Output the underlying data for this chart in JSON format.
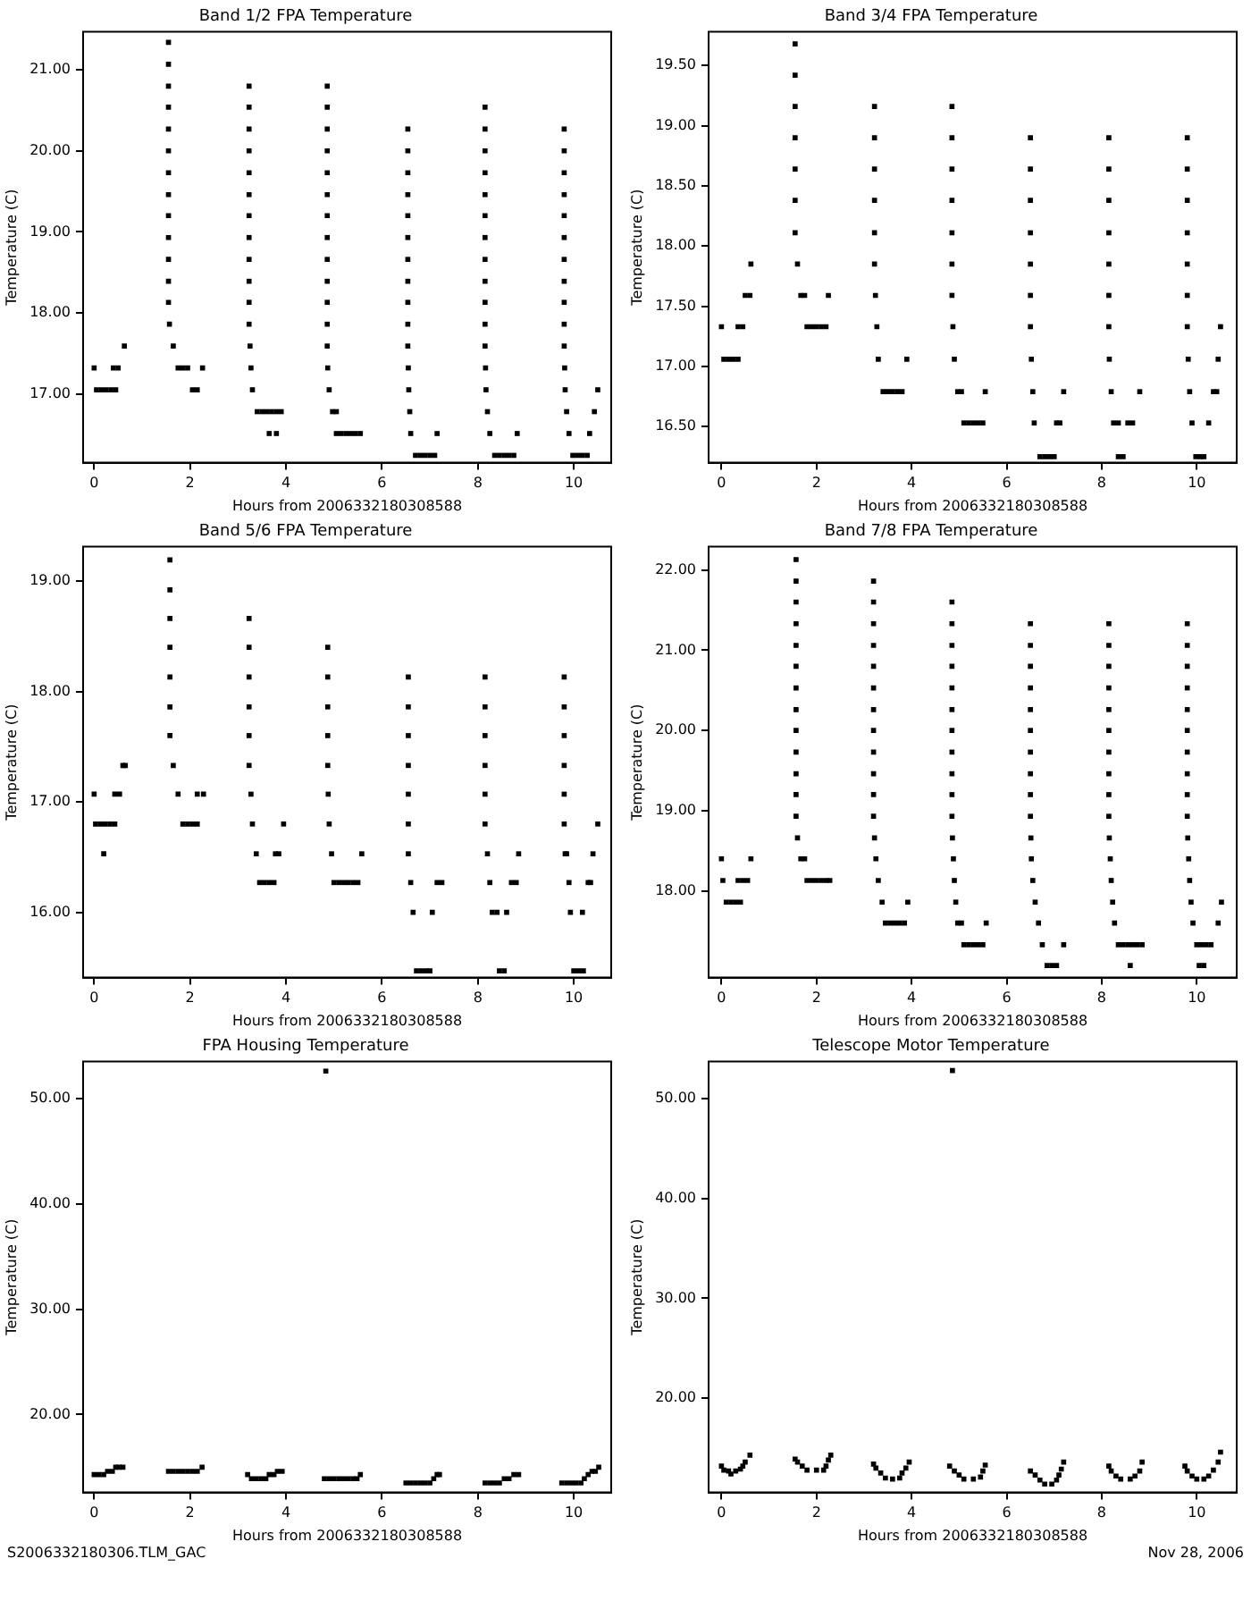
{
  "chart_data": [
    {
      "type": "scatter",
      "title": "Band 1/2 FPA Temperature",
      "xlabel": "Hours from 2006332180308588",
      "ylabel": "Temperature (C)",
      "color": "#000000",
      "marker": "square",
      "grid": false,
      "x": [
        0,
        0.05,
        0.15,
        0.25,
        0.35,
        0.45,
        0.4,
        0.5,
        0.63,
        1.55,
        1.55,
        1.55,
        1.55,
        1.55,
        1.55,
        1.55,
        1.55,
        1.55,
        1.55,
        1.55,
        1.55,
        1.55,
        1.57,
        1.65,
        1.75,
        1.85,
        1.95,
        2.05,
        2.15,
        2.26,
        3.23,
        3.23,
        3.23,
        3.23,
        3.23,
        3.23,
        3.23,
        3.23,
        3.23,
        3.23,
        3.23,
        3.23,
        3.25,
        3.27,
        3.3,
        3.4,
        3.5,
        3.6,
        3.7,
        3.8,
        3.9,
        3.65,
        3.8,
        4.86,
        4.86,
        4.86,
        4.86,
        4.86,
        4.86,
        4.86,
        4.86,
        4.86,
        4.86,
        4.86,
        4.86,
        4.86,
        4.87,
        4.9,
        4.97,
        5.05,
        5.05,
        5.15,
        5.25,
        5.35,
        5.45,
        5.55,
        6.54,
        6.54,
        6.54,
        6.54,
        6.54,
        6.54,
        6.54,
        6.54,
        6.54,
        6.54,
        6.54,
        6.55,
        6.56,
        6.58,
        6.6,
        6.7,
        6.8,
        6.9,
        7.0,
        7.1,
        7.15,
        8.15,
        8.15,
        8.15,
        8.15,
        8.15,
        8.15,
        8.15,
        8.15,
        8.15,
        8.15,
        8.15,
        8.15,
        8.16,
        8.17,
        8.2,
        8.25,
        8.35,
        8.45,
        8.55,
        8.65,
        8.75,
        8.82,
        9.8,
        9.8,
        9.8,
        9.8,
        9.8,
        9.8,
        9.8,
        9.8,
        9.8,
        9.8,
        9.8,
        9.81,
        9.82,
        9.85,
        9.9,
        9.98,
        10.08,
        10.18,
        10.28,
        10.33,
        10.43,
        10.5
      ],
      "values": [
        17.32,
        17.05,
        17.05,
        17.05,
        17.05,
        17.05,
        17.32,
        17.32,
        17.59,
        21.34,
        21.07,
        20.8,
        20.54,
        20.27,
        20.0,
        19.73,
        19.46,
        19.2,
        18.93,
        18.66,
        18.39,
        18.13,
        17.86,
        17.59,
        17.32,
        17.32,
        17.32,
        17.05,
        17.05,
        17.32,
        20.8,
        20.54,
        20.27,
        20.0,
        19.73,
        19.46,
        19.2,
        18.93,
        18.66,
        18.39,
        18.13,
        17.86,
        17.59,
        17.32,
        17.05,
        16.78,
        16.78,
        16.78,
        16.78,
        16.78,
        16.78,
        16.51,
        16.51,
        20.8,
        20.54,
        20.27,
        20.0,
        19.73,
        19.46,
        19.2,
        18.93,
        18.66,
        18.39,
        18.13,
        17.86,
        17.59,
        17.32,
        17.05,
        16.78,
        16.78,
        16.51,
        16.51,
        16.51,
        16.51,
        16.51,
        16.51,
        20.27,
        20.0,
        19.73,
        19.46,
        19.2,
        18.93,
        18.66,
        18.39,
        18.13,
        17.86,
        17.59,
        17.32,
        17.05,
        16.78,
        16.51,
        16.24,
        16.24,
        16.24,
        16.24,
        16.24,
        16.51,
        20.54,
        20.27,
        20.0,
        19.73,
        19.46,
        19.2,
        18.93,
        18.66,
        18.39,
        18.13,
        17.86,
        17.59,
        17.32,
        17.05,
        16.78,
        16.51,
        16.24,
        16.24,
        16.24,
        16.24,
        16.24,
        16.51,
        20.27,
        20.0,
        19.73,
        19.46,
        19.2,
        18.93,
        18.66,
        18.39,
        18.13,
        17.86,
        17.59,
        17.32,
        17.05,
        16.78,
        16.51,
        16.24,
        16.24,
        16.24,
        16.24,
        16.51,
        16.78,
        17.05
      ],
      "xlim": [
        -0.23,
        10.78
      ],
      "xticks": [
        0,
        2,
        4,
        6,
        8,
        10
      ],
      "ylim": [
        16.15,
        21.47
      ],
      "yticks": [
        {
          "value": 17,
          "label": "17.00"
        },
        {
          "value": 18,
          "label": "18.00"
        },
        {
          "value": 19,
          "label": "19.00"
        },
        {
          "value": 20,
          "label": "20.00"
        },
        {
          "value": 21,
          "label": "21.00"
        }
      ]
    },
    {
      "type": "scatter",
      "title": "Band 3/4 FPA Temperature",
      "xlabel": "Hours from 2006332180308588",
      "ylabel": "Temperature (C)",
      "color": "#000000",
      "marker": "square",
      "grid": false,
      "x": [
        0,
        0.05,
        0.15,
        0.25,
        0.35,
        0.35,
        0.45,
        0.5,
        0.6,
        0.62,
        1.55,
        1.55,
        1.55,
        1.55,
        1.55,
        1.55,
        1.55,
        1.6,
        1.67,
        1.75,
        1.8,
        1.9,
        2.0,
        2.1,
        2.2,
        2.25,
        3.22,
        3.22,
        3.22,
        3.22,
        3.22,
        3.22,
        3.24,
        3.27,
        3.3,
        3.4,
        3.5,
        3.6,
        3.7,
        3.8,
        3.9,
        4.85,
        4.85,
        4.85,
        4.85,
        4.85,
        4.85,
        4.85,
        4.87,
        4.9,
        4.97,
        5.05,
        5.1,
        5.2,
        5.3,
        5.4,
        5.5,
        5.55,
        6.5,
        6.5,
        6.5,
        6.5,
        6.5,
        6.5,
        6.5,
        6.52,
        6.55,
        6.58,
        6.7,
        6.8,
        6.9,
        7.0,
        7.05,
        7.12,
        7.2,
        8.15,
        8.15,
        8.15,
        8.15,
        8.15,
        8.15,
        8.15,
        8.16,
        8.2,
        8.25,
        8.35,
        8.35,
        8.45,
        8.55,
        8.65,
        8.8,
        9.8,
        9.8,
        9.8,
        9.8,
        9.8,
        9.8,
        9.8,
        9.82,
        9.85,
        9.9,
        9.98,
        10.08,
        10.15,
        10.25,
        10.35,
        10.42,
        10.45,
        10.5
      ],
      "values": [
        17.33,
        17.06,
        17.06,
        17.06,
        17.06,
        17.33,
        17.33,
        17.59,
        17.59,
        17.85,
        19.68,
        19.42,
        19.16,
        18.9,
        18.64,
        18.38,
        18.11,
        17.85,
        17.59,
        17.59,
        17.33,
        17.33,
        17.33,
        17.33,
        17.33,
        17.59,
        19.16,
        18.9,
        18.64,
        18.38,
        18.11,
        17.85,
        17.59,
        17.33,
        17.06,
        16.79,
        16.79,
        16.79,
        16.79,
        16.79,
        17.06,
        19.16,
        18.9,
        18.64,
        18.38,
        18.11,
        17.85,
        17.59,
        17.33,
        17.06,
        16.79,
        16.79,
        16.53,
        16.53,
        16.53,
        16.53,
        16.53,
        16.79,
        18.9,
        18.64,
        18.38,
        18.11,
        17.85,
        17.59,
        17.33,
        17.06,
        16.79,
        16.53,
        16.25,
        16.25,
        16.25,
        16.25,
        16.53,
        16.53,
        16.79,
        18.9,
        18.64,
        18.38,
        18.11,
        17.85,
        17.59,
        17.33,
        17.06,
        16.79,
        16.53,
        16.53,
        16.25,
        16.25,
        16.53,
        16.53,
        16.79,
        18.9,
        18.64,
        18.38,
        18.11,
        17.85,
        17.59,
        17.33,
        17.06,
        16.79,
        16.53,
        16.25,
        16.25,
        16.25,
        16.53,
        16.79,
        16.79,
        17.06,
        17.33
      ],
      "xlim": [
        -0.27,
        10.84
      ],
      "xticks": [
        0,
        2,
        4,
        6,
        8,
        10
      ],
      "ylim": [
        16.2,
        19.78
      ],
      "yticks": [
        {
          "value": 16.5,
          "label": "16.50"
        },
        {
          "value": 17,
          "label": "17.00"
        },
        {
          "value": 17.5,
          "label": "17.50"
        },
        {
          "value": 18,
          "label": "18.00"
        },
        {
          "value": 18.5,
          "label": "18.50"
        },
        {
          "value": 19,
          "label": "19.00"
        },
        {
          "value": 19.5,
          "label": "19.50"
        }
      ]
    },
    {
      "type": "scatter",
      "title": "Band 5/6 FPA Temperature",
      "xlabel": "Hours from 2006332180308588",
      "ylabel": "Temperature (C)",
      "color": "#000000",
      "marker": "square",
      "grid": false,
      "x": [
        0,
        0.03,
        0.13,
        0.23,
        0.33,
        0.43,
        0.2,
        0.43,
        0.53,
        0.6,
        0.65,
        1.58,
        1.58,
        1.58,
        1.58,
        1.58,
        1.58,
        1.58,
        1.65,
        1.75,
        1.85,
        1.95,
        2.05,
        2.15,
        2.15,
        2.28,
        3.23,
        3.23,
        3.23,
        3.23,
        3.23,
        3.23,
        3.27,
        3.3,
        3.38,
        3.45,
        3.55,
        3.65,
        3.75,
        3.78,
        3.85,
        3.95,
        4.87,
        4.87,
        4.87,
        4.87,
        4.87,
        4.88,
        4.9,
        4.95,
        5.0,
        5.1,
        5.2,
        5.3,
        5.4,
        5.5,
        5.58,
        6.55,
        6.55,
        6.55,
        6.55,
        6.55,
        6.55,
        6.55,
        6.6,
        6.65,
        6.72,
        6.82,
        6.92,
        7.0,
        7.05,
        7.15,
        7.25,
        8.15,
        8.15,
        8.15,
        8.15,
        8.15,
        8.15,
        8.2,
        8.25,
        8.3,
        8.4,
        8.45,
        8.55,
        8.6,
        8.7,
        8.8,
        8.85,
        9.8,
        9.8,
        9.8,
        9.8,
        9.8,
        9.8,
        9.82,
        9.85,
        9.9,
        9.93,
        10.0,
        10.1,
        10.2,
        10.18,
        10.3,
        10.35,
        10.4,
        10.5
      ],
      "values": [
        17.07,
        16.8,
        16.8,
        16.8,
        16.8,
        16.8,
        16.53,
        17.07,
        17.07,
        17.33,
        17.33,
        19.19,
        18.92,
        18.66,
        18.4,
        18.13,
        17.86,
        17.6,
        17.33,
        17.07,
        16.8,
        16.8,
        16.8,
        16.8,
        17.07,
        17.07,
        18.66,
        18.4,
        18.13,
        17.86,
        17.6,
        17.33,
        17.07,
        16.8,
        16.53,
        16.27,
        16.27,
        16.27,
        16.27,
        16.53,
        16.53,
        16.8,
        18.4,
        18.13,
        17.86,
        17.6,
        17.33,
        17.07,
        16.8,
        16.53,
        16.27,
        16.27,
        16.27,
        16.27,
        16.27,
        16.27,
        16.53,
        18.13,
        17.86,
        17.6,
        17.33,
        17.07,
        16.8,
        16.53,
        16.27,
        16.0,
        15.47,
        15.47,
        15.47,
        15.47,
        16.0,
        16.27,
        16.27,
        18.13,
        17.86,
        17.6,
        17.33,
        17.07,
        16.8,
        16.53,
        16.27,
        16.0,
        16.0,
        15.47,
        15.47,
        16.0,
        16.27,
        16.27,
        16.53,
        18.13,
        17.86,
        17.6,
        17.33,
        17.07,
        16.8,
        16.53,
        16.53,
        16.27,
        16.0,
        15.47,
        15.47,
        15.47,
        16.0,
        16.27,
        16.27,
        16.53,
        16.8
      ],
      "xlim": [
        -0.23,
        10.78
      ],
      "xticks": [
        0,
        2,
        4,
        6,
        8,
        10
      ],
      "ylim": [
        15.41,
        19.31
      ],
      "yticks": [
        {
          "value": 16,
          "label": "16.00"
        },
        {
          "value": 17,
          "label": "17.00"
        },
        {
          "value": 18,
          "label": "18.00"
        },
        {
          "value": 19,
          "label": "19.00"
        }
      ]
    },
    {
      "type": "scatter",
      "title": "Band 7/8 FPA Temperature",
      "xlabel": "Hours from 2006332180308588",
      "ylabel": "Temperature (C)",
      "color": "#000000",
      "marker": "square",
      "grid": false,
      "x": [
        0,
        0.03,
        0.1,
        0.2,
        0.3,
        0.4,
        0.35,
        0.45,
        0.55,
        0.62,
        1.57,
        1.57,
        1.57,
        1.57,
        1.57,
        1.57,
        1.57,
        1.57,
        1.57,
        1.57,
        1.57,
        1.57,
        1.57,
        1.6,
        1.67,
        1.75,
        1.8,
        1.9,
        2.0,
        2.1,
        2.2,
        2.28,
        3.2,
        3.2,
        3.2,
        3.2,
        3.2,
        3.2,
        3.2,
        3.2,
        3.2,
        3.2,
        3.2,
        3.2,
        3.22,
        3.25,
        3.3,
        3.38,
        3.45,
        3.55,
        3.65,
        3.75,
        3.85,
        3.92,
        4.85,
        4.85,
        4.85,
        4.85,
        4.85,
        4.85,
        4.85,
        4.85,
        4.85,
        4.85,
        4.85,
        4.86,
        4.88,
        4.9,
        4.93,
        4.97,
        5.05,
        5.1,
        5.2,
        5.3,
        5.4,
        5.5,
        5.57,
        6.5,
        6.5,
        6.5,
        6.5,
        6.5,
        6.5,
        6.5,
        6.5,
        6.5,
        6.5,
        6.51,
        6.52,
        6.55,
        6.6,
        6.67,
        6.75,
        6.85,
        6.95,
        7.05,
        7.2,
        8.15,
        8.15,
        8.15,
        8.15,
        8.15,
        8.15,
        8.15,
        8.15,
        8.15,
        8.15,
        8.16,
        8.18,
        8.2,
        8.23,
        8.27,
        8.35,
        8.45,
        8.55,
        8.6,
        8.65,
        8.75,
        8.85,
        9.8,
        9.8,
        9.8,
        9.8,
        9.8,
        9.8,
        9.8,
        9.8,
        9.8,
        9.8,
        9.81,
        9.83,
        9.85,
        9.88,
        9.92,
        10.0,
        10.1,
        10.05,
        10.15,
        10.2,
        10.3,
        10.45,
        10.52
      ],
      "values": [
        18.4,
        18.13,
        17.86,
        17.86,
        17.86,
        17.86,
        18.13,
        18.13,
        18.13,
        18.4,
        22.13,
        21.86,
        21.6,
        21.33,
        21.06,
        20.8,
        20.53,
        20.26,
        20.0,
        19.73,
        19.46,
        19.2,
        18.93,
        18.66,
        18.4,
        18.4,
        18.13,
        18.13,
        18.13,
        18.13,
        18.13,
        18.13,
        21.86,
        21.6,
        21.33,
        21.06,
        20.8,
        20.53,
        20.26,
        20.0,
        19.73,
        19.46,
        19.2,
        18.93,
        18.66,
        18.4,
        18.13,
        17.86,
        17.6,
        17.6,
        17.6,
        17.6,
        17.6,
        17.86,
        21.6,
        21.33,
        21.06,
        20.8,
        20.53,
        20.26,
        20.0,
        19.73,
        19.46,
        19.2,
        18.93,
        18.66,
        18.4,
        18.13,
        17.86,
        17.6,
        17.6,
        17.33,
        17.33,
        17.33,
        17.33,
        17.33,
        17.6,
        21.33,
        21.06,
        20.8,
        20.53,
        20.26,
        20.0,
        19.73,
        19.46,
        19.2,
        18.93,
        18.66,
        18.4,
        18.13,
        17.86,
        17.6,
        17.33,
        17.07,
        17.07,
        17.07,
        17.33,
        21.33,
        21.06,
        20.8,
        20.53,
        20.26,
        20.0,
        19.73,
        19.46,
        19.2,
        18.93,
        18.66,
        18.4,
        18.13,
        17.86,
        17.6,
        17.33,
        17.33,
        17.33,
        17.07,
        17.33,
        17.33,
        17.33,
        21.33,
        21.06,
        20.8,
        20.53,
        20.26,
        20.0,
        19.73,
        19.46,
        19.2,
        18.93,
        18.66,
        18.4,
        18.13,
        17.86,
        17.6,
        17.33,
        17.33,
        17.07,
        17.07,
        17.33,
        17.33,
        17.6,
        17.86
      ],
      "xlim": [
        -0.27,
        10.84
      ],
      "xticks": [
        0,
        2,
        4,
        6,
        8,
        10
      ],
      "ylim": [
        16.92,
        22.29
      ],
      "yticks": [
        {
          "value": 18,
          "label": "18.00"
        },
        {
          "value": 19,
          "label": "19.00"
        },
        {
          "value": 20,
          "label": "20.00"
        },
        {
          "value": 21,
          "label": "21.00"
        },
        {
          "value": 22,
          "label": "22.00"
        }
      ]
    },
    {
      "type": "scatter",
      "title": "FPA Housing Temperature",
      "xlabel": "Hours from 2006332180308588",
      "ylabel": "Temperature (C)",
      "color": "#000000",
      "marker": "square",
      "grid": false,
      "x": [
        0,
        0.1,
        0.2,
        0.28,
        0.38,
        0.45,
        0.52,
        0.6,
        1.55,
        1.65,
        1.75,
        1.85,
        1.95,
        2.05,
        2.15,
        2.25,
        3.2,
        3.28,
        3.38,
        3.48,
        3.58,
        3.65,
        3.75,
        3.82,
        3.92,
        4.83,
        4.8,
        4.9,
        5.0,
        5.1,
        5.2,
        5.3,
        5.4,
        5.48,
        5.55,
        6.5,
        6.6,
        6.7,
        6.8,
        6.9,
        7.0,
        7.08,
        7.15,
        7.2,
        8.15,
        8.25,
        8.35,
        8.45,
        8.55,
        8.65,
        8.75,
        8.85,
        9.75,
        9.85,
        9.95,
        10.05,
        10.15,
        10.22,
        10.3,
        10.38,
        10.45,
        10.52
      ],
      "values": [
        14.3,
        14.3,
        14.3,
        14.6,
        14.6,
        15.0,
        15.0,
        15.0,
        14.6,
        14.6,
        14.6,
        14.6,
        14.6,
        14.6,
        14.6,
        15.0,
        14.3,
        13.9,
        13.9,
        13.9,
        13.9,
        14.3,
        14.3,
        14.6,
        14.6,
        52.6,
        13.9,
        13.9,
        13.9,
        13.9,
        13.9,
        13.9,
        13.9,
        13.9,
        14.3,
        13.5,
        13.5,
        13.5,
        13.5,
        13.5,
        13.5,
        13.9,
        14.3,
        14.3,
        13.5,
        13.5,
        13.5,
        13.5,
        13.9,
        13.9,
        14.3,
        14.3,
        13.5,
        13.5,
        13.5,
        13.5,
        13.5,
        13.9,
        14.3,
        14.6,
        14.6,
        15.0
      ],
      "xlim": [
        -0.23,
        10.78
      ],
      "xticks": [
        0,
        2,
        4,
        6,
        8,
        10
      ],
      "ylim": [
        12.6,
        53.5
      ],
      "yticks": [
        {
          "value": 20,
          "label": "20.00"
        },
        {
          "value": 30,
          "label": "30.00"
        },
        {
          "value": 40,
          "label": "40.00"
        },
        {
          "value": 50,
          "label": "50.00"
        }
      ],
      "annotations": [
        "S2006332180306.TLM_GAC"
      ]
    },
    {
      "type": "scatter",
      "title": "Telescope Motor Temperature",
      "xlabel": "Hours from 2006332180308588",
      "ylabel": "Temperature (C)",
      "color": "#000000",
      "marker": "square",
      "grid": false,
      "x": [
        0,
        0.05,
        0.15,
        0.2,
        0.3,
        0.4,
        0.45,
        0.5,
        0.6,
        1.55,
        1.6,
        1.7,
        1.8,
        2.0,
        2.15,
        2.2,
        2.25,
        2.3,
        3.2,
        3.25,
        3.35,
        3.45,
        3.6,
        3.75,
        3.8,
        3.88,
        3.95,
        4.86,
        4.8,
        4.9,
        5.0,
        5.1,
        5.3,
        5.45,
        5.5,
        5.55,
        6.5,
        6.6,
        6.7,
        6.8,
        6.95,
        7.05,
        7.1,
        7.15,
        7.2,
        8.15,
        8.2,
        8.3,
        8.4,
        8.6,
        8.7,
        8.8,
        8.85,
        9.75,
        9.8,
        9.9,
        10.0,
        10.15,
        10.25,
        10.35,
        10.45,
        10.5
      ],
      "values": [
        13.2,
        12.8,
        12.7,
        12.4,
        12.7,
        12.9,
        13.2,
        13.6,
        14.3,
        13.9,
        13.6,
        13.2,
        12.8,
        12.8,
        12.8,
        13.2,
        13.8,
        14.3,
        13.4,
        13.0,
        12.5,
        12.0,
        11.9,
        12.0,
        12.5,
        13.0,
        13.6,
        52.8,
        13.2,
        12.7,
        12.3,
        11.9,
        11.9,
        12.1,
        12.7,
        13.3,
        12.7,
        12.3,
        11.8,
        11.4,
        11.4,
        11.8,
        12.3,
        12.9,
        13.6,
        13.2,
        12.7,
        12.2,
        11.9,
        11.9,
        12.2,
        12.7,
        13.6,
        13.2,
        12.7,
        12.2,
        11.9,
        11.9,
        12.2,
        12.8,
        13.6,
        14.6
      ],
      "xlim": [
        -0.27,
        10.84
      ],
      "xticks": [
        0,
        2,
        4,
        6,
        8,
        10
      ],
      "ylim": [
        10.56,
        53.7
      ],
      "yticks": [
        {
          "value": 20,
          "label": "20.00"
        },
        {
          "value": 30,
          "label": "30.00"
        },
        {
          "value": 40,
          "label": "40.00"
        },
        {
          "value": 50,
          "label": "50.00"
        }
      ],
      "annotations": [
        "Nov 28, 2006"
      ]
    }
  ]
}
